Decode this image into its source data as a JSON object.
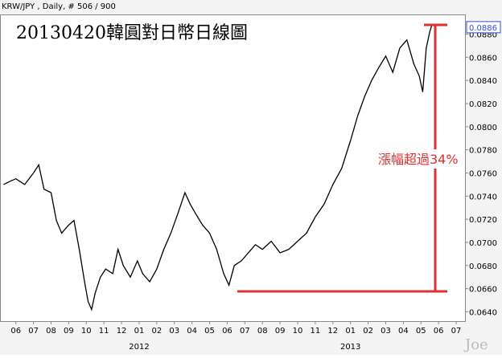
{
  "chart_data": {
    "type": "line",
    "header": "KRW/JPY , Daily, # 506 / 900",
    "title": "20130420韓圓對日幣日線圖",
    "annotation": "漲幅超過34%",
    "watermark": "Joe",
    "last_value": {
      "value": 0.0886,
      "label": "0.0886"
    },
    "series": [
      {
        "name": "KRW/JPY",
        "color": "#000000",
        "x": [
          -0.7,
          -0.3,
          0,
          0.5,
          1,
          1.3,
          1.6,
          2,
          2.3,
          2.6,
          3,
          3.3,
          3.6,
          3.9,
          4.1,
          4.3,
          4.5,
          4.8,
          5.1,
          5.5,
          5.8,
          6.1,
          6.5,
          6.9,
          7.2,
          7.6,
          8,
          8.4,
          8.8,
          9.2,
          9.6,
          9.9,
          10.2,
          10.6,
          11,
          11.4,
          11.8,
          12.1,
          12.4,
          12.8,
          13.2,
          13.6,
          14,
          14.5,
          15,
          15.5,
          16,
          16.5,
          17,
          17.5,
          18,
          18.5,
          19,
          19.4,
          19.8,
          20.2,
          20.6,
          21,
          21.4,
          21.8,
          22.2,
          22.6,
          22.9,
          23.1,
          23.3,
          23.5,
          23.6
        ],
        "values": [
          0.075,
          0.0753,
          0.0755,
          0.075,
          0.076,
          0.0767,
          0.0746,
          0.0743,
          0.0719,
          0.0708,
          0.0715,
          0.0719,
          0.0694,
          0.0666,
          0.0649,
          0.0642,
          0.0656,
          0.067,
          0.0677,
          0.0673,
          0.0694,
          0.068,
          0.067,
          0.0684,
          0.0673,
          0.0666,
          0.0677,
          0.0694,
          0.0708,
          0.0725,
          0.0743,
          0.0733,
          0.0725,
          0.0715,
          0.0708,
          0.0694,
          0.0673,
          0.0663,
          0.068,
          0.0684,
          0.0691,
          0.0698,
          0.0694,
          0.0701,
          0.0691,
          0.0694,
          0.0701,
          0.0708,
          0.0722,
          0.0733,
          0.075,
          0.0764,
          0.0788,
          0.0809,
          0.0826,
          0.084,
          0.0851,
          0.0861,
          0.0847,
          0.0868,
          0.0875,
          0.0854,
          0.0844,
          0.083,
          0.0868,
          0.0882,
          0.0887
        ]
      }
    ],
    "xlim": [
      -0.9,
      25.5
    ],
    "ylim": [
      0.0632,
      0.0897
    ],
    "xticks": [
      {
        "value": 0,
        "label": "06"
      },
      {
        "value": 1,
        "label": "07"
      },
      {
        "value": 2,
        "label": "08"
      },
      {
        "value": 3,
        "label": "09"
      },
      {
        "value": 4,
        "label": "10"
      },
      {
        "value": 5,
        "label": "11"
      },
      {
        "value": 6,
        "label": "12"
      },
      {
        "value": 7,
        "label": "01"
      },
      {
        "value": 8,
        "label": "02"
      },
      {
        "value": 9,
        "label": "03"
      },
      {
        "value": 10,
        "label": "04"
      },
      {
        "value": 11,
        "label": "05"
      },
      {
        "value": 12,
        "label": "06"
      },
      {
        "value": 13,
        "label": "07"
      },
      {
        "value": 14,
        "label": "08"
      },
      {
        "value": 15,
        "label": "09"
      },
      {
        "value": 16,
        "label": "10"
      },
      {
        "value": 17,
        "label": "11"
      },
      {
        "value": 18,
        "label": "12"
      },
      {
        "value": 19,
        "label": "01"
      },
      {
        "value": 20,
        "label": "02"
      },
      {
        "value": 21,
        "label": "03"
      },
      {
        "value": 22,
        "label": "04"
      },
      {
        "value": 23,
        "label": "05"
      },
      {
        "value": 24,
        "label": "06"
      },
      {
        "value": 25,
        "label": "07"
      }
    ],
    "year_ticks": [
      {
        "value": 7,
        "label": "2012"
      },
      {
        "value": 19,
        "label": "2013"
      }
    ],
    "yticks": [
      {
        "value": 0.064,
        "label": "0.0640"
      },
      {
        "value": 0.066,
        "label": "0.0660"
      },
      {
        "value": 0.068,
        "label": "0.0680"
      },
      {
        "value": 0.07,
        "label": "0.0700"
      },
      {
        "value": 0.072,
        "label": "0.0720"
      },
      {
        "value": 0.074,
        "label": "0.0740"
      },
      {
        "value": 0.076,
        "label": "0.0760"
      },
      {
        "value": 0.078,
        "label": "0.0780"
      },
      {
        "value": 0.08,
        "label": "0.0800"
      },
      {
        "value": 0.082,
        "label": "0.0820"
      },
      {
        "value": 0.084,
        "label": "0.0840"
      },
      {
        "value": 0.086,
        "label": "0.0860"
      },
      {
        "value": 0.088,
        "label": "0.0880"
      }
    ]
  }
}
